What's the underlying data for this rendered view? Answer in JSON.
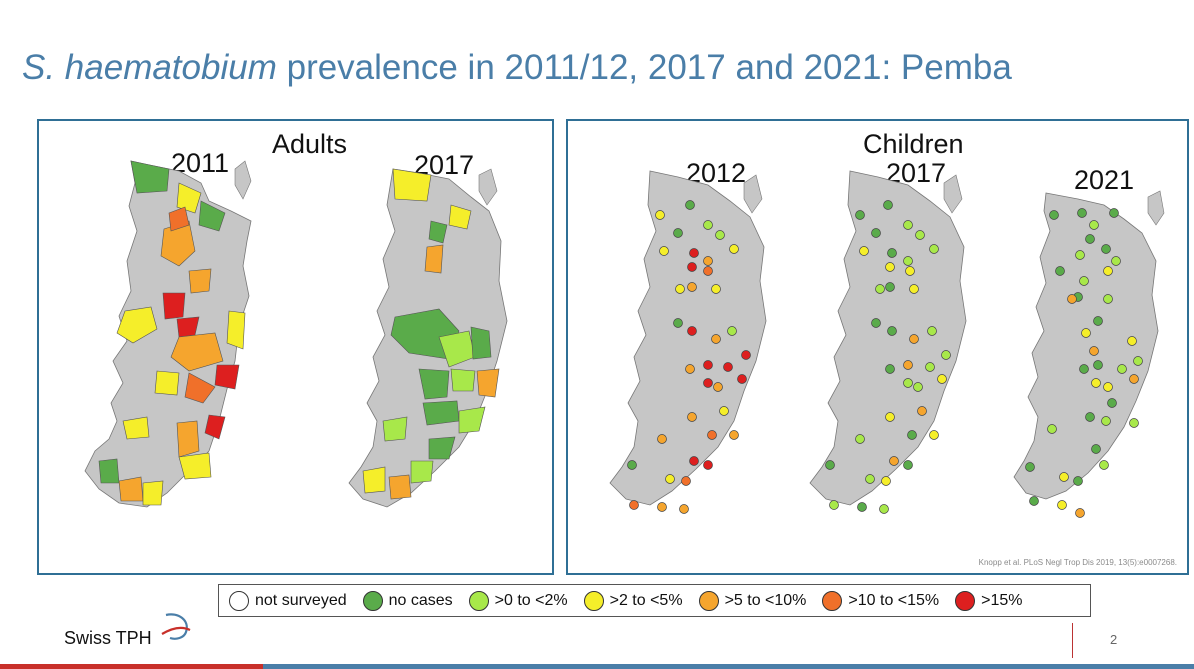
{
  "title": {
    "italic": "S. haematobium",
    "rest": " prevalence in 2011/12, 2017 and 2021: Pemba"
  },
  "panels": {
    "adults": {
      "label": "Adults",
      "years": [
        "2011",
        "2017"
      ]
    },
    "children": {
      "label": "Children",
      "years": [
        "2012",
        "2017",
        "2021"
      ]
    }
  },
  "citation": "Knopp et al. PLoS Negl Trop Dis 2019, 13(5):e0007268.",
  "legend": [
    {
      "label": "not surveyed",
      "color": "#ffffff"
    },
    {
      "label": "no cases",
      "color": "#5aab4a"
    },
    {
      "label": ">0 to <2%",
      "color": "#a8e84a"
    },
    {
      "label": ">2 to <5%",
      "color": "#f5ee2a"
    },
    {
      "label": ">5 to <10%",
      "color": "#f5a52e"
    },
    {
      "label": ">10 to <15%",
      "color": "#f0702a"
    },
    {
      "label": ">15%",
      "color": "#dd1f1f"
    }
  ],
  "footer": {
    "logo": "Swiss TPH",
    "page": "2"
  },
  "colors": {
    "island": "#c6c6c6",
    "border": "#2f6f95",
    "title": "#4a7ea8"
  }
}
